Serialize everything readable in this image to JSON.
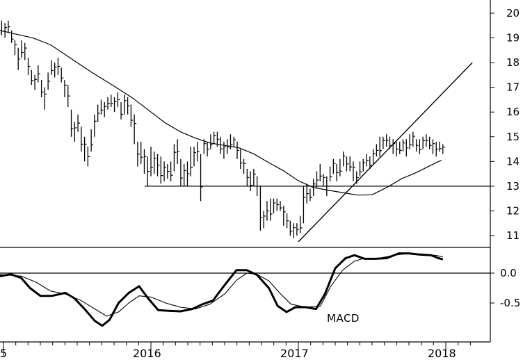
{
  "chart_data": [
    {
      "type": "ohlc",
      "ylim": [
        10.4,
        20.6
      ],
      "xlim": [
        2014.92,
        2018.2
      ],
      "y_ticks": [
        {
          "value": 11,
          "label": "11"
        },
        {
          "value": 12,
          "label": "12"
        },
        {
          "value": 13,
          "label": "13"
        },
        {
          "value": 14,
          "label": "14"
        },
        {
          "value": 15,
          "label": "15"
        },
        {
          "value": 16,
          "label": "16"
        },
        {
          "value": 17,
          "label": "17"
        },
        {
          "value": 18,
          "label": "18"
        },
        {
          "value": 19,
          "label": "19"
        },
        {
          "value": 20,
          "label": "20"
        }
      ],
      "x_labels": [
        {
          "x": 2015.0,
          "label": "5"
        },
        {
          "x": 2016.0,
          "label": "2016"
        },
        {
          "x": 2017.0,
          "label": "2017"
        },
        {
          "x": 2018.0,
          "label": "2018"
        }
      ],
      "price_weekly": [
        [
          18.8,
          19.4
        ],
        [
          18.6,
          19.1
        ],
        [
          18.9,
          19.5
        ],
        [
          19.1,
          19.7
        ],
        [
          19.0,
          19.6
        ],
        [
          19.2,
          19.7
        ],
        [
          18.8,
          19.3
        ],
        [
          18.3,
          18.9
        ],
        [
          17.7,
          18.6
        ],
        [
          18.2,
          18.9
        ],
        [
          18.1,
          18.8
        ],
        [
          17.5,
          18.2
        ],
        [
          17.1,
          17.7
        ],
        [
          16.9,
          17.5
        ],
        [
          17.2,
          17.9
        ],
        [
          16.6,
          17.3
        ],
        [
          16.1,
          17.0
        ],
        [
          16.9,
          17.6
        ],
        [
          17.5,
          18.1
        ],
        [
          17.4,
          18.0
        ],
        [
          17.5,
          18.2
        ],
        [
          17.2,
          17.8
        ],
        [
          16.6,
          17.3
        ],
        [
          16.2,
          17.1
        ],
        [
          15.0,
          16.1
        ],
        [
          14.8,
          15.6
        ],
        [
          15.2,
          15.9
        ],
        [
          14.4,
          15.4
        ],
        [
          14.0,
          15.0
        ],
        [
          13.8,
          14.6
        ],
        [
          14.4,
          15.3
        ],
        [
          15.0,
          15.9
        ],
        [
          15.6,
          16.3
        ],
        [
          15.9,
          16.5
        ],
        [
          15.8,
          16.4
        ],
        [
          16.1,
          16.6
        ],
        [
          16.2,
          16.7
        ],
        [
          16.0,
          16.6
        ],
        [
          16.2,
          16.8
        ],
        [
          15.7,
          16.4
        ],
        [
          15.9,
          16.7
        ],
        [
          15.9,
          16.6
        ],
        [
          15.4,
          16.3
        ],
        [
          14.7,
          15.9
        ],
        [
          13.8,
          14.8
        ],
        [
          13.9,
          14.8
        ],
        [
          13.5,
          14.5
        ],
        [
          13.0,
          14.2
        ],
        [
          13.4,
          14.6
        ],
        [
          13.5,
          14.4
        ],
        [
          13.4,
          14.3
        ],
        [
          13.1,
          14.2
        ],
        [
          13.2,
          14.0
        ],
        [
          13.3,
          13.9
        ],
        [
          13.2,
          14.0
        ],
        [
          13.6,
          14.7
        ],
        [
          13.9,
          14.9
        ],
        [
          13.0,
          14.1
        ],
        [
          13.0,
          13.9
        ],
        [
          13.0,
          14.0
        ],
        [
          13.4,
          14.6
        ],
        [
          13.8,
          14.6
        ],
        [
          14.0,
          14.8
        ],
        [
          12.4,
          14.3
        ],
        [
          14.3,
          14.9
        ],
        [
          14.2,
          14.8
        ],
        [
          14.5,
          15.1
        ],
        [
          14.7,
          15.2
        ],
        [
          14.6,
          15.2
        ],
        [
          14.3,
          15.0
        ],
        [
          14.1,
          14.8
        ],
        [
          14.3,
          14.9
        ],
        [
          14.5,
          15.1
        ],
        [
          14.6,
          15.0
        ],
        [
          14.1,
          14.8
        ],
        [
          13.7,
          14.5
        ],
        [
          13.5,
          14.1
        ],
        [
          13.0,
          13.7
        ],
        [
          12.8,
          13.6
        ],
        [
          13.0,
          13.7
        ],
        [
          12.6,
          13.4
        ],
        [
          11.2,
          13.0
        ],
        [
          11.3,
          12.0
        ],
        [
          11.6,
          12.4
        ],
        [
          11.6,
          12.5
        ],
        [
          11.9,
          12.5
        ],
        [
          12.0,
          12.5
        ],
        [
          12.0,
          12.4
        ],
        [
          11.4,
          12.2
        ],
        [
          11.3,
          11.9
        ],
        [
          11.0,
          11.6
        ],
        [
          10.9,
          11.5
        ],
        [
          11.0,
          11.5
        ],
        [
          11.1,
          11.8
        ],
        [
          11.5,
          13.0
        ],
        [
          12.3,
          13.1
        ],
        [
          12.4,
          12.9
        ],
        [
          12.6,
          13.3
        ],
        [
          12.9,
          13.6
        ],
        [
          13.2,
          13.9
        ],
        [
          13.0,
          13.5
        ],
        [
          12.6,
          13.4
        ],
        [
          13.2,
          13.8
        ],
        [
          13.5,
          14.1
        ],
        [
          13.2,
          13.9
        ],
        [
          13.4,
          14.1
        ],
        [
          13.8,
          14.4
        ],
        [
          13.6,
          14.2
        ],
        [
          13.6,
          14.2
        ],
        [
          13.2,
          14.0
        ],
        [
          13.1,
          13.6
        ],
        [
          13.4,
          14.0
        ],
        [
          13.6,
          14.1
        ],
        [
          13.8,
          14.3
        ],
        [
          13.7,
          14.2
        ],
        [
          13.9,
          14.5
        ],
        [
          14.2,
          14.7
        ],
        [
          14.2,
          15.0
        ],
        [
          14.5,
          15.0
        ],
        [
          14.6,
          15.1
        ],
        [
          14.5,
          15.0
        ],
        [
          14.3,
          14.9
        ],
        [
          14.2,
          14.8
        ],
        [
          14.3,
          14.8
        ],
        [
          14.4,
          14.9
        ],
        [
          14.2,
          14.9
        ],
        [
          14.5,
          15.1
        ],
        [
          14.6,
          15.2
        ],
        [
          14.4,
          14.9
        ],
        [
          14.3,
          14.9
        ],
        [
          14.5,
          15.0
        ],
        [
          14.6,
          15.1
        ],
        [
          14.5,
          15.0
        ],
        [
          14.3,
          14.9
        ],
        [
          14.2,
          14.8
        ],
        [
          14.4,
          14.8
        ],
        [
          14.3,
          14.7
        ]
      ],
      "moving_average": [
        [
          2014.92,
          19.38
        ],
        [
          2015.05,
          19.2
        ],
        [
          2015.2,
          19.0
        ],
        [
          2015.32,
          18.72
        ],
        [
          2015.45,
          18.2
        ],
        [
          2015.6,
          17.6
        ],
        [
          2015.75,
          17.05
        ],
        [
          2015.88,
          16.55
        ],
        [
          2016.0,
          16.0
        ],
        [
          2016.1,
          15.55
        ],
        [
          2016.2,
          15.2
        ],
        [
          2016.3,
          14.95
        ],
        [
          2016.4,
          14.75
        ],
        [
          2016.5,
          14.65
        ],
        [
          2016.6,
          14.55
        ],
        [
          2016.7,
          14.3
        ],
        [
          2016.8,
          13.95
        ],
        [
          2016.9,
          13.62
        ],
        [
          2017.0,
          13.22
        ],
        [
          2017.1,
          12.95
        ],
        [
          2017.2,
          12.84
        ],
        [
          2017.3,
          12.74
        ],
        [
          2017.4,
          12.64
        ],
        [
          2017.5,
          12.65
        ],
        [
          2017.6,
          12.95
        ],
        [
          2017.7,
          13.3
        ],
        [
          2017.8,
          13.55
        ],
        [
          2017.9,
          13.85
        ],
        [
          2017.97,
          14.05
        ]
      ],
      "trendline": [
        [
          2017.0,
          10.75
        ],
        [
          2018.18,
          18.0
        ]
      ],
      "horizontal_line": 13.0
    },
    {
      "type": "line",
      "ylim": [
        -0.92,
        0.52
      ],
      "y_ticks": [
        {
          "value": 0.0,
          "label": "0.0"
        },
        {
          "value": -0.5,
          "label": "-0.5"
        }
      ],
      "annotation": "MACD",
      "upper_line": 0.43,
      "zero_line": 0.0,
      "series": [
        {
          "style": "bold",
          "points": [
            [
              2014.92,
              -0.04
            ],
            [
              2014.98,
              -0.05
            ],
            [
              2015.05,
              -0.02
            ],
            [
              2015.12,
              -0.08
            ],
            [
              2015.18,
              -0.25
            ],
            [
              2015.25,
              -0.38
            ],
            [
              2015.33,
              -0.38
            ],
            [
              2015.42,
              -0.33
            ],
            [
              2015.48,
              -0.42
            ],
            [
              2015.55,
              -0.6
            ],
            [
              2015.62,
              -0.8
            ],
            [
              2015.67,
              -0.88
            ],
            [
              2015.72,
              -0.78
            ],
            [
              2015.78,
              -0.5
            ],
            [
              2015.85,
              -0.33
            ],
            [
              2015.92,
              -0.22
            ],
            [
              2015.98,
              -0.42
            ],
            [
              2016.05,
              -0.62
            ],
            [
              2016.12,
              -0.63
            ],
            [
              2016.2,
              -0.64
            ],
            [
              2016.28,
              -0.6
            ],
            [
              2016.35,
              -0.52
            ],
            [
              2016.42,
              -0.46
            ],
            [
              2016.5,
              -0.2
            ],
            [
              2016.58,
              0.05
            ],
            [
              2016.65,
              0.05
            ],
            [
              2016.72,
              -0.03
            ],
            [
              2016.8,
              -0.25
            ],
            [
              2016.86,
              -0.55
            ],
            [
              2016.92,
              -0.65
            ],
            [
              2016.98,
              -0.57
            ],
            [
              2017.05,
              -0.57
            ],
            [
              2017.12,
              -0.6
            ],
            [
              2017.18,
              -0.35
            ],
            [
              2017.25,
              0.08
            ],
            [
              2017.32,
              0.25
            ],
            [
              2017.38,
              0.3
            ],
            [
              2017.45,
              0.24
            ],
            [
              2017.52,
              0.24
            ],
            [
              2017.6,
              0.25
            ],
            [
              2017.68,
              0.33
            ],
            [
              2017.75,
              0.33
            ],
            [
              2017.82,
              0.31
            ],
            [
              2017.9,
              0.3
            ],
            [
              2017.95,
              0.25
            ],
            [
              2017.98,
              0.23
            ]
          ]
        },
        {
          "style": "thin",
          "points": [
            [
              2014.92,
              -0.02
            ],
            [
              2015.02,
              -0.03
            ],
            [
              2015.12,
              -0.05
            ],
            [
              2015.22,
              -0.15
            ],
            [
              2015.32,
              -0.3
            ],
            [
              2015.42,
              -0.35
            ],
            [
              2015.52,
              -0.45
            ],
            [
              2015.62,
              -0.6
            ],
            [
              2015.7,
              -0.72
            ],
            [
              2015.78,
              -0.65
            ],
            [
              2015.85,
              -0.5
            ],
            [
              2015.92,
              -0.38
            ],
            [
              2016.0,
              -0.4
            ],
            [
              2016.1,
              -0.5
            ],
            [
              2016.2,
              -0.57
            ],
            [
              2016.3,
              -0.6
            ],
            [
              2016.4,
              -0.52
            ],
            [
              2016.5,
              -0.35
            ],
            [
              2016.58,
              -0.12
            ],
            [
              2016.65,
              0.0
            ],
            [
              2016.72,
              -0.02
            ],
            [
              2016.8,
              -0.13
            ],
            [
              2016.88,
              -0.35
            ],
            [
              2016.95,
              -0.52
            ],
            [
              2017.05,
              -0.57
            ],
            [
              2017.15,
              -0.55
            ],
            [
              2017.22,
              -0.22
            ],
            [
              2017.3,
              0.05
            ],
            [
              2017.38,
              0.2
            ],
            [
              2017.45,
              0.25
            ],
            [
              2017.55,
              0.25
            ],
            [
              2017.65,
              0.3
            ],
            [
              2017.75,
              0.33
            ],
            [
              2017.85,
              0.32
            ],
            [
              2017.95,
              0.29
            ],
            [
              2017.98,
              0.27
            ]
          ]
        }
      ]
    }
  ]
}
